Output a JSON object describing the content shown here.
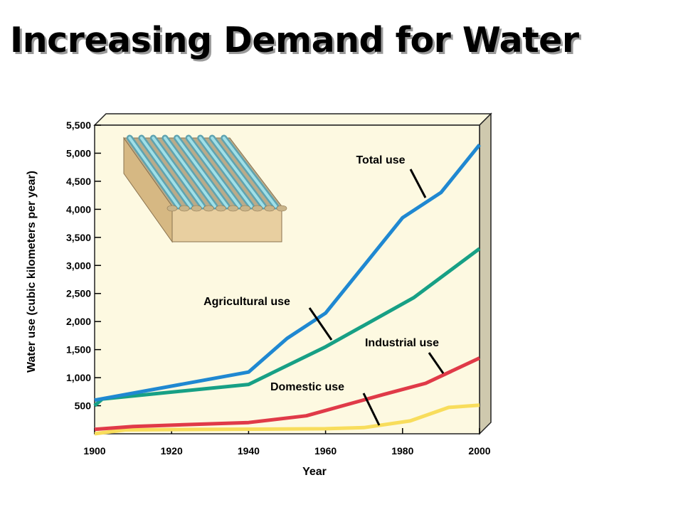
{
  "slide": {
    "title": "Increasing Demand for Water"
  },
  "colors": {
    "plot_background": "#fdf9e1",
    "box_side": "#cfc9ae",
    "total": "#1f88d1",
    "agricultural": "#17a085",
    "industrial": "#e03a48",
    "domestic": "#f8dd5c"
  },
  "icons": {
    "illustration": "irrigated-field-icon"
  },
  "chart_data": {
    "type": "line",
    "title": "",
    "xlabel": "Year",
    "ylabel": "Water use (cubic kilometers per year)",
    "xlim": [
      1900,
      2000
    ],
    "ylim": [
      0,
      5500
    ],
    "x_ticks": [
      "1900",
      "1920",
      "1940",
      "1960",
      "1980",
      "2000"
    ],
    "y_ticks": [
      "500",
      "1,000",
      "1,500",
      "2,000",
      "2,500",
      "3,000",
      "3,500",
      "4,000",
      "4,500",
      "5,000",
      "5,500"
    ],
    "grid": false,
    "series": [
      {
        "key": "total",
        "name": "Total use",
        "x": [
          1900,
          1940,
          1950,
          1960,
          1970,
          1980,
          1990,
          2000
        ],
        "y": [
          600,
          1100,
          1700,
          2150,
          3000,
          3850,
          4300,
          5150
        ]
      },
      {
        "key": "agricultural",
        "name": "Agricultural use",
        "x": [
          1900,
          1902,
          1940,
          1960,
          1983,
          2000
        ],
        "y": [
          500,
          620,
          880,
          1550,
          2430,
          3300
        ]
      },
      {
        "key": "industrial",
        "name": "Industrial use",
        "x": [
          1900,
          1910,
          1940,
          1955,
          1975,
          1986,
          2000
        ],
        "y": [
          80,
          130,
          200,
          320,
          700,
          900,
          1350
        ]
      },
      {
        "key": "domestic",
        "name": "Domestic use",
        "x": [
          1900,
          1908,
          1960,
          1970,
          1982,
          1992,
          2000
        ],
        "y": [
          0,
          70,
          90,
          110,
          230,
          470,
          510
        ]
      }
    ]
  }
}
